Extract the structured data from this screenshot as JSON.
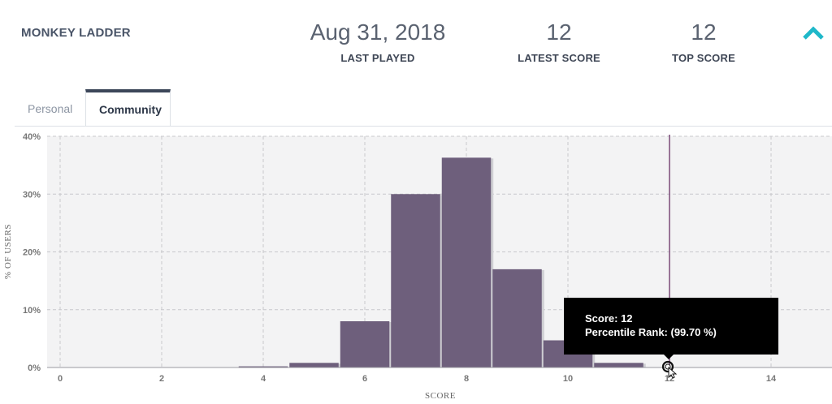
{
  "header": {
    "game_title": "MONKEY LADDER",
    "last_played": {
      "value": "Aug 31, 2018",
      "label": "LAST PLAYED"
    },
    "latest_score": {
      "value": "12",
      "label": "LATEST SCORE"
    },
    "top_score": {
      "value": "12",
      "label": "TOP SCORE"
    },
    "collapse_icon": "chevron-up-icon"
  },
  "tabs": [
    {
      "label": "Personal",
      "active": false
    },
    {
      "label": "Community",
      "active": true
    }
  ],
  "tooltip": {
    "score_line": "Score: 12",
    "percentile_line": "Percentile Rank: (99.70 %)"
  },
  "colors": {
    "bar": "#6e5f7c",
    "marker": "#7a4a78",
    "accent": "#1fb8c9"
  },
  "chart_data": {
    "type": "bar",
    "title": "",
    "xlabel": "SCORE",
    "ylabel": "% OF USERS",
    "xlim": [
      -0.5,
      15.5
    ],
    "ylim": [
      0,
      40
    ],
    "x_ticks": [
      0,
      2,
      4,
      6,
      8,
      10,
      12,
      14
    ],
    "y_ticks": [
      0,
      10,
      20,
      30,
      40
    ],
    "y_tick_labels": [
      "0%",
      "10%",
      "20%",
      "30%",
      "40%"
    ],
    "grid": true,
    "bars": [
      {
        "x": 4,
        "value": 0.2
      },
      {
        "x": 5,
        "value": 0.8
      },
      {
        "x": 6,
        "value": 8.0
      },
      {
        "x": 7,
        "value": 30.0
      },
      {
        "x": 8,
        "value": 36.3
      },
      {
        "x": 9,
        "value": 17.0
      },
      {
        "x": 10,
        "value": 4.7
      },
      {
        "x": 11,
        "value": 0.8
      }
    ],
    "marker_x": 12
  }
}
